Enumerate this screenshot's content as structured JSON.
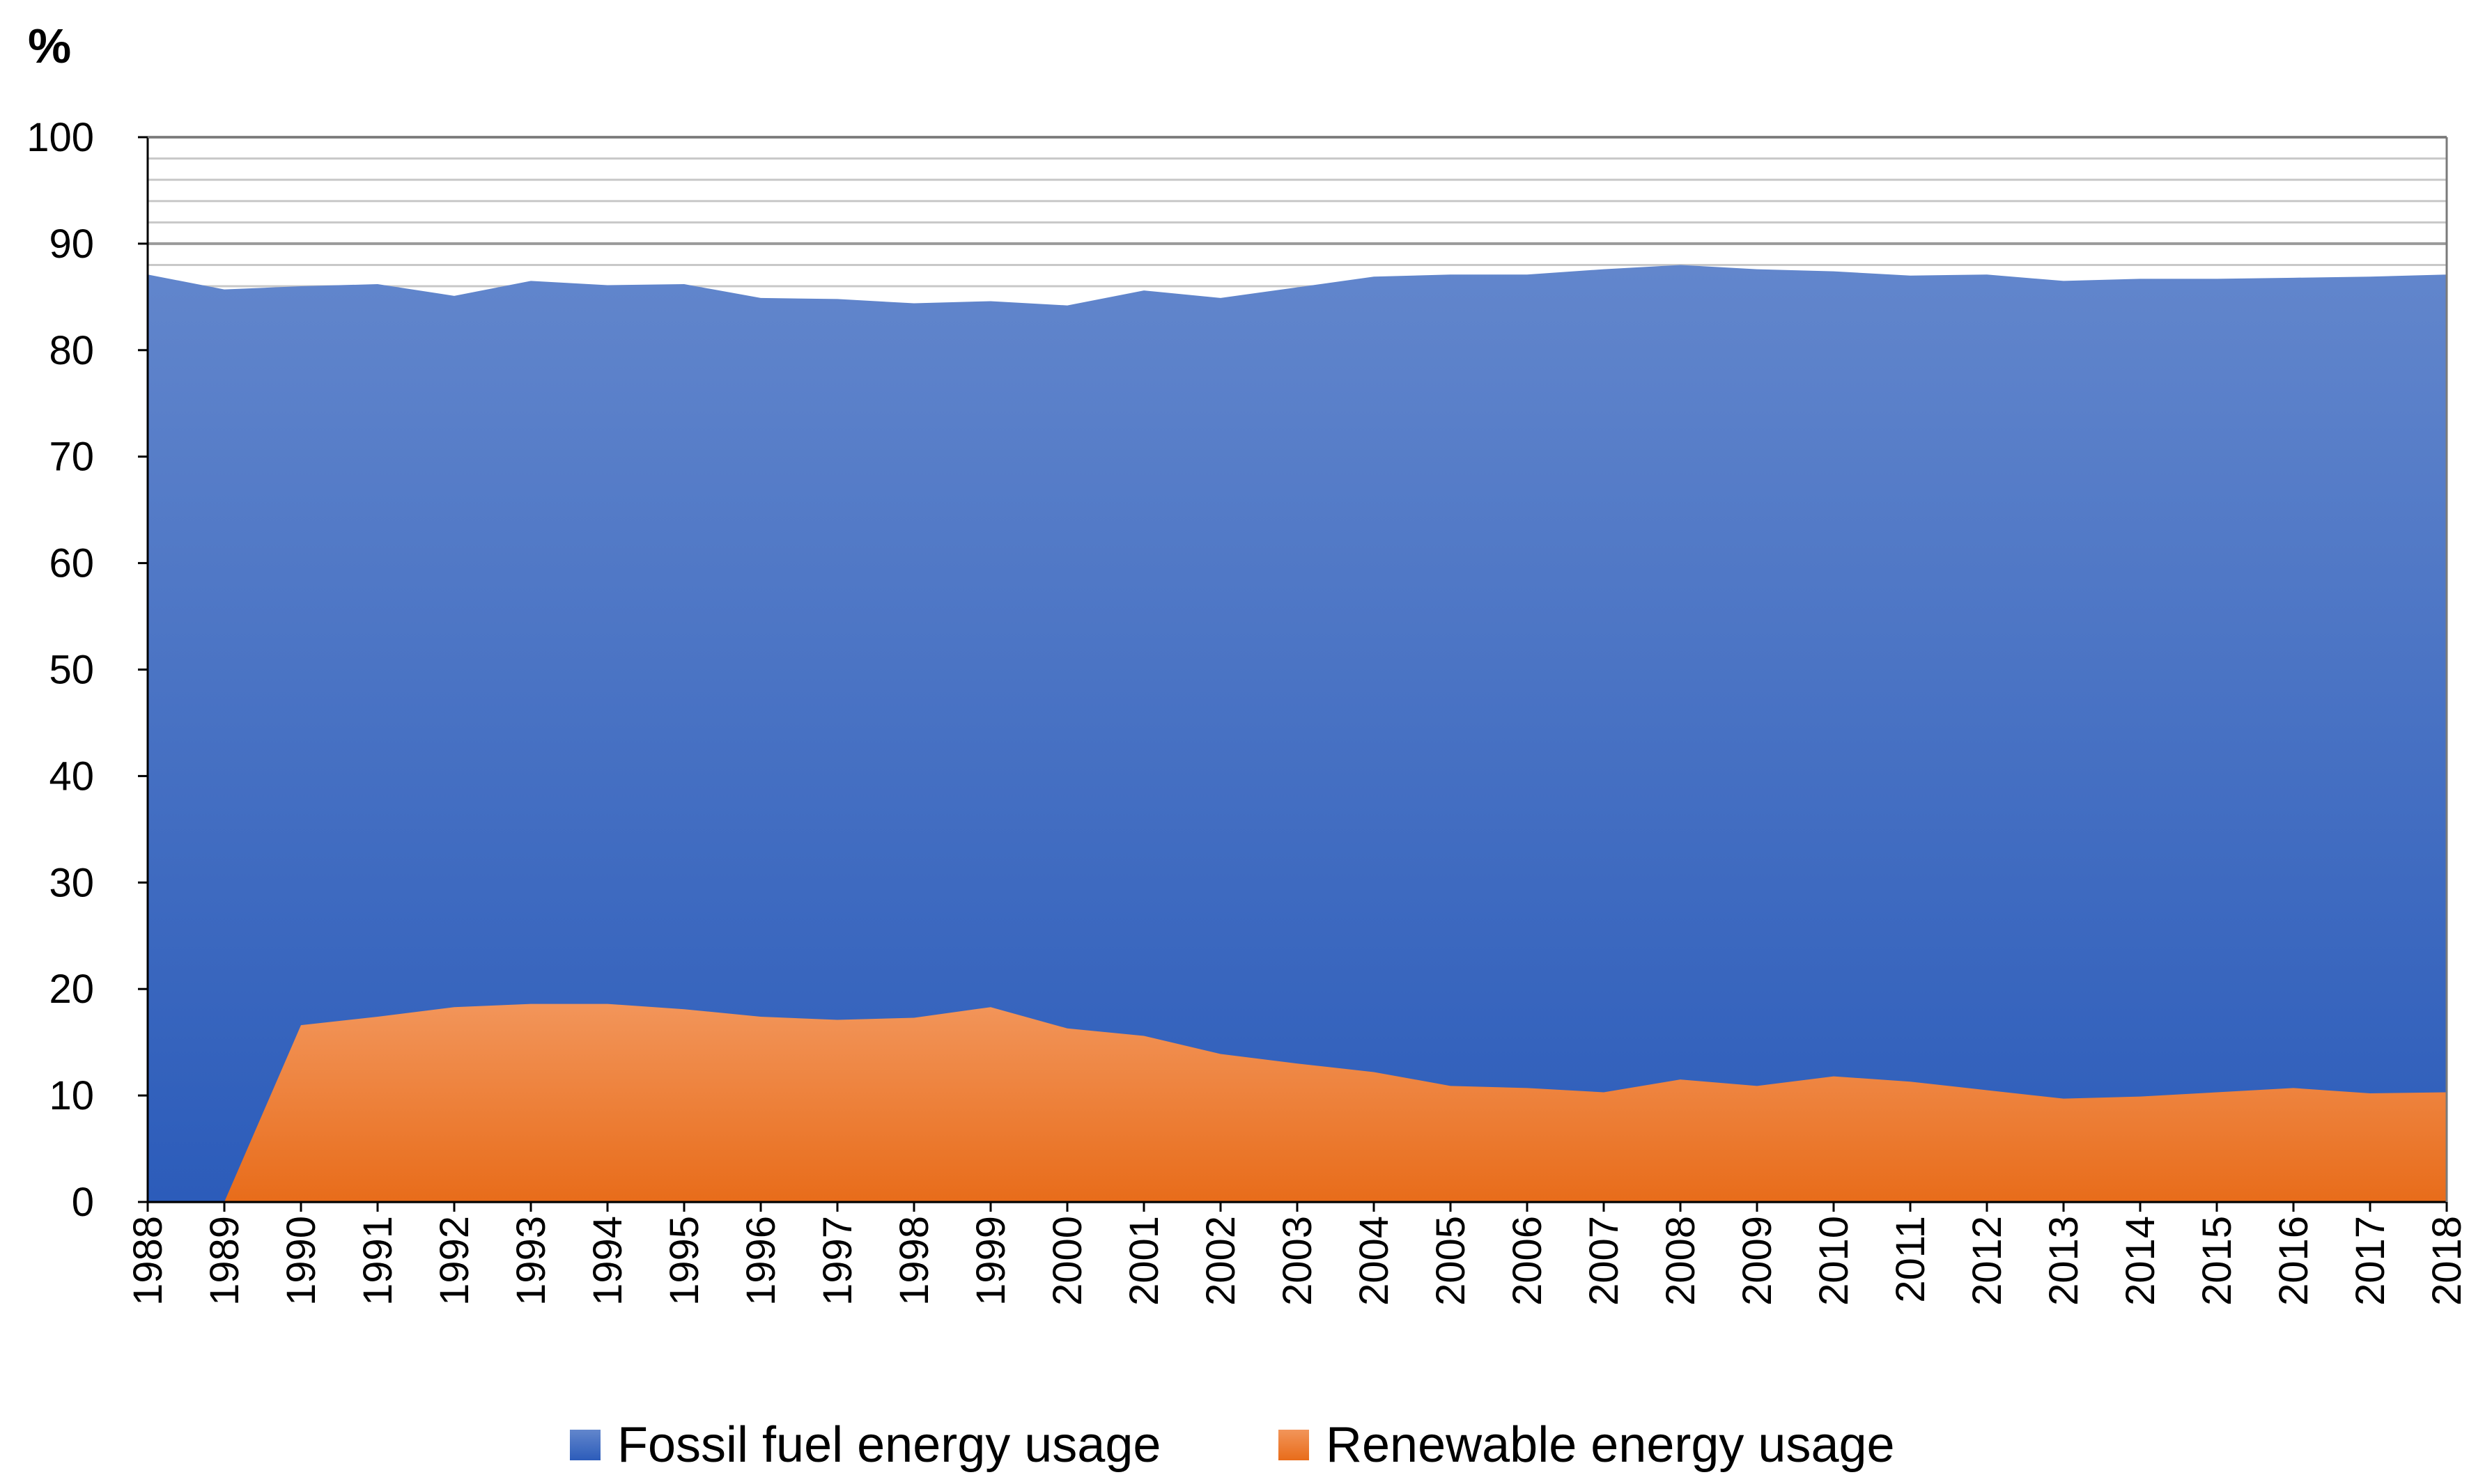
{
  "chart_data": {
    "type": "area",
    "stacked": false,
    "title": "",
    "ylabel": "%",
    "xlabel": "",
    "ylim": [
      0,
      100
    ],
    "yticks": [
      "0",
      "10",
      "20",
      "30",
      "40",
      "50",
      "60",
      "70",
      "80",
      "90",
      "100"
    ],
    "categories": [
      "1988",
      "1989",
      "1990",
      "1991",
      "1992",
      "1993",
      "1994",
      "1995",
      "1996",
      "1997",
      "1998",
      "1999",
      "2000",
      "2001",
      "2002",
      "2003",
      "2004",
      "2005",
      "2006",
      "2007",
      "2008",
      "2009",
      "2010",
      "2011",
      "2012",
      "2013",
      "2014",
      "2015",
      "2016",
      "2017",
      "2018"
    ],
    "series": [
      {
        "name": "Fossil fuel energy usage",
        "color_top": "#6286cc",
        "color_bottom": "#2c5cba",
        "values": [
          87.1,
          85.7,
          86.0,
          86.2,
          85.1,
          86.5,
          86.1,
          86.2,
          84.9,
          84.8,
          84.4,
          84.6,
          84.2,
          85.6,
          84.9,
          85.9,
          86.9,
          87.1,
          87.1,
          87.6,
          88.0,
          87.6,
          87.4,
          87.0,
          87.1,
          86.5,
          86.7,
          86.7,
          86.8,
          86.9,
          87.1
        ]
      },
      {
        "name": "Renewable energy usage",
        "color_top": "#f2955a",
        "color_bottom": "#e86c1a",
        "values": [
          0.0,
          0.0,
          16.6,
          17.4,
          18.3,
          18.6,
          18.6,
          18.1,
          17.4,
          17.1,
          17.3,
          18.3,
          16.3,
          15.6,
          13.9,
          13.0,
          12.2,
          10.9,
          10.7,
          10.3,
          11.5,
          10.9,
          11.8,
          11.3,
          10.5,
          9.7,
          9.9,
          10.3,
          10.7,
          10.2,
          10.3
        ]
      }
    ],
    "grid": true,
    "legend_position": "bottom-center"
  }
}
